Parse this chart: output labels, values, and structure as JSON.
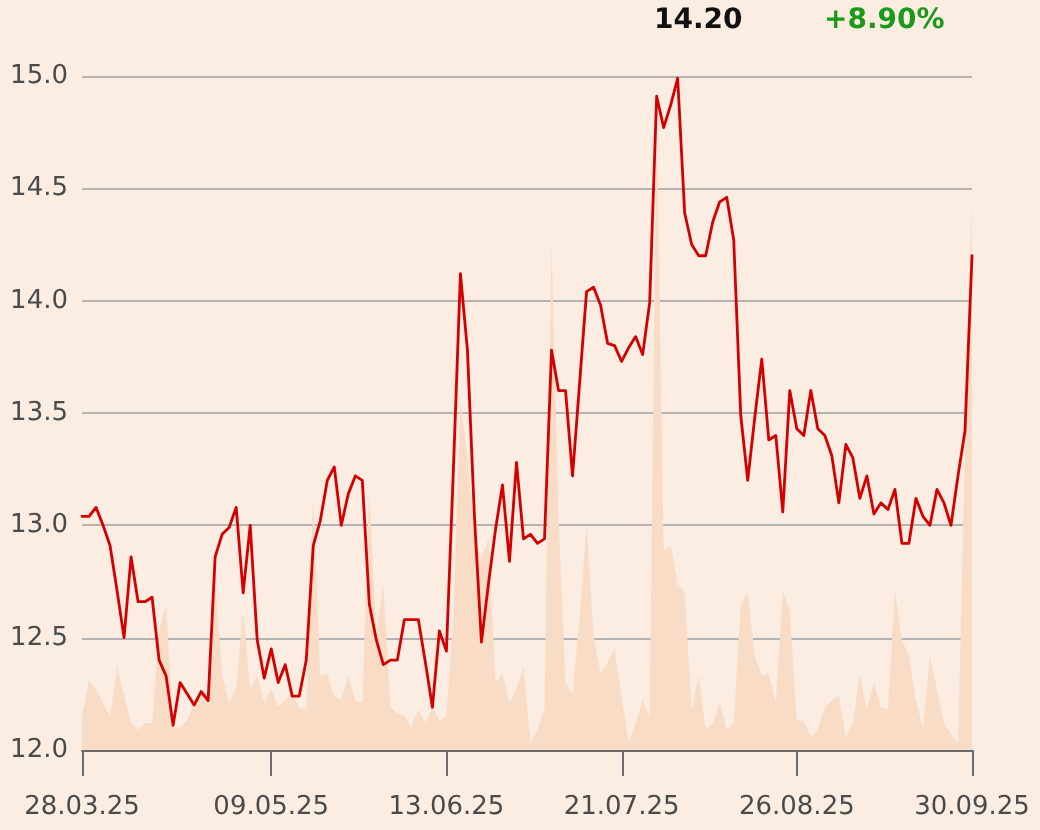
{
  "chart_data": {
    "type": "line",
    "annotations": [
      "14.20",
      "+8.90%"
    ],
    "categories": [
      "28.03.25",
      null,
      null,
      null,
      null,
      null,
      null,
      null,
      null,
      null,
      null,
      null,
      null,
      null,
      null,
      null,
      null,
      null,
      null,
      null,
      null,
      null,
      null,
      null,
      null,
      null,
      null,
      "09.05.25",
      null,
      null,
      null,
      null,
      null,
      null,
      null,
      null,
      null,
      null,
      null,
      null,
      null,
      null,
      null,
      null,
      null,
      null,
      null,
      null,
      null,
      null,
      null,
      null,
      "13.06.25",
      null,
      null,
      null,
      null,
      null,
      null,
      null,
      null,
      null,
      null,
      null,
      null,
      null,
      null,
      null,
      null,
      null,
      null,
      null,
      null,
      null,
      null,
      null,
      null,
      "21.07.25",
      null,
      null,
      null,
      null,
      null,
      null,
      null,
      null,
      null,
      null,
      null,
      null,
      null,
      null,
      null,
      null,
      null,
      null,
      null,
      null,
      null,
      null,
      null,
      null,
      "26.08.25",
      null,
      null,
      null,
      null,
      null,
      null,
      null,
      null,
      null,
      null,
      null,
      null,
      null,
      null,
      null,
      null,
      null,
      null,
      null,
      null,
      null,
      null,
      null,
      null,
      "30.09.25"
    ],
    "series": [
      {
        "type": "area",
        "color": "#f8dcc6",
        "values": [
          12.15,
          12.31,
          12.27,
          12.21,
          12.15,
          12.37,
          12.24,
          12.12,
          12.09,
          12.12,
          12.12,
          12.53,
          12.65,
          12.1,
          12.1,
          12.13,
          12.21,
          12.27,
          12.25,
          12.77,
          12.33,
          12.21,
          12.28,
          12.62,
          12.27,
          12.33,
          12.21,
          12.27,
          12.19,
          12.22,
          12.25,
          12.19,
          12.18,
          13.13,
          12.33,
          12.34,
          12.24,
          12.22,
          12.33,
          12.22,
          12.21,
          13.16,
          12.51,
          12.74,
          12.19,
          12.16,
          12.15,
          12.1,
          12.18,
          12.12,
          12.19,
          12.13,
          12.15,
          12.6,
          13.55,
          13.3,
          12.95,
          12.85,
          12.94,
          12.3,
          12.34,
          12.21,
          12.27,
          12.37,
          12.03,
          12.09,
          12.18,
          14.26,
          13.04,
          12.3,
          12.25,
          12.59,
          13.0,
          12.51,
          12.34,
          12.39,
          12.45,
          12.24,
          12.03,
          12.12,
          12.22,
          12.15,
          14.85,
          12.89,
          12.91,
          12.74,
          12.7,
          12.18,
          12.33,
          12.09,
          12.12,
          12.21,
          12.09,
          12.12,
          12.65,
          12.7,
          12.42,
          12.33,
          12.34,
          12.21,
          12.71,
          12.62,
          12.13,
          12.13,
          12.06,
          12.09,
          12.19,
          12.22,
          12.24,
          12.06,
          12.12,
          12.33,
          12.18,
          12.3,
          12.19,
          12.18,
          12.71,
          12.49,
          12.42,
          12.22,
          12.1,
          12.42,
          12.27,
          12.12,
          12.07,
          12.03,
          13.34,
          14.45
        ]
      },
      {
        "color": "#d40000",
        "values": [
          13.04,
          13.04,
          13.08,
          13.0,
          12.91,
          12.71,
          12.5,
          12.86,
          12.66,
          12.66,
          12.68,
          12.4,
          12.33,
          12.11,
          12.3,
          12.25,
          12.2,
          12.26,
          12.22,
          12.86,
          12.96,
          12.99,
          13.08,
          12.7,
          13.0,
          12.49,
          12.32,
          12.45,
          12.3,
          12.38,
          12.24,
          12.24,
          12.4,
          12.91,
          13.02,
          13.2,
          13.26,
          13.0,
          13.14,
          13.22,
          13.2,
          12.65,
          12.49,
          12.38,
          12.4,
          12.4,
          12.58,
          12.58,
          12.58,
          12.39,
          12.19,
          12.53,
          12.44,
          13.25,
          14.12,
          13.78,
          13.04,
          12.48,
          12.74,
          12.98,
          13.18,
          12.84,
          13.28,
          12.94,
          12.96,
          12.92,
          12.94,
          13.78,
          13.6,
          13.6,
          13.22,
          13.63,
          14.04,
          14.06,
          13.98,
          13.81,
          13.8,
          13.73,
          13.79,
          13.84,
          13.76,
          13.99,
          14.91,
          14.77,
          14.87,
          14.99,
          14.39,
          14.25,
          14.2,
          14.2,
          14.35,
          14.44,
          14.46,
          14.27,
          13.49,
          13.2,
          13.48,
          13.74,
          13.38,
          13.4,
          13.06,
          13.6,
          13.43,
          13.4,
          13.6,
          13.43,
          13.4,
          13.31,
          13.1,
          13.36,
          13.3,
          13.12,
          13.22,
          13.05,
          13.1,
          13.07,
          13.16,
          12.92,
          12.92,
          13.12,
          13.04,
          13.0,
          13.16,
          13.1,
          13.0,
          13.22,
          13.42,
          14.2
        ]
      }
    ],
    "ylim": [
      12,
      15
    ],
    "yticks": [
      {
        "value": 12,
        "label": "12.0"
      },
      {
        "value": 12.5,
        "label": "12.5"
      },
      {
        "value": 13,
        "label": "13.0"
      },
      {
        "value": 13.5,
        "label": "13.5"
      },
      {
        "value": 14,
        "label": "14.0"
      },
      {
        "value": 14.5,
        "label": "14.5"
      },
      {
        "value": 15,
        "label": "15.0"
      }
    ],
    "grid": "y",
    "marker": "none",
    "line_style": "solid"
  }
}
